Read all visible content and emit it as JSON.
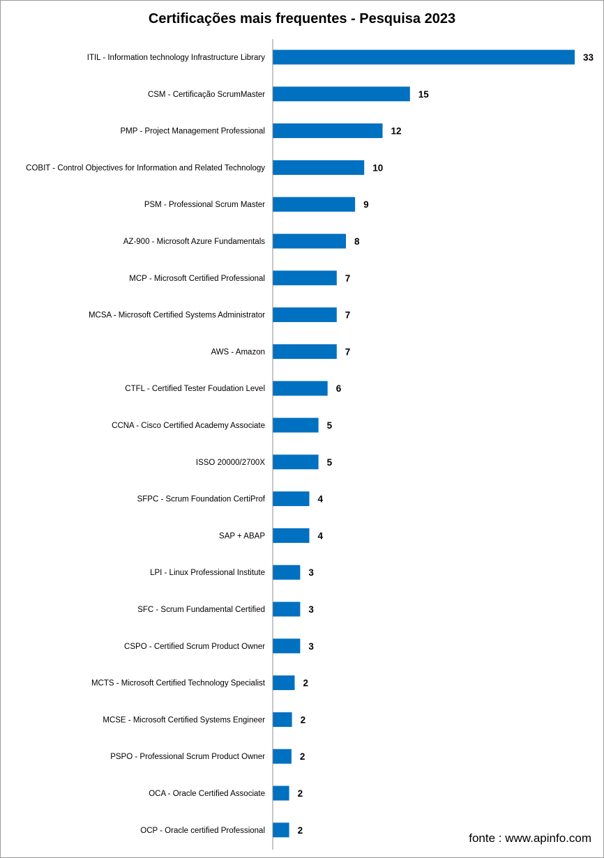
{
  "chart_data": {
    "type": "bar",
    "orientation": "horizontal",
    "title": "Certificações mais frequentes - Pesquisa 2023",
    "source": "fonte : www.apinfo.com",
    "bar_color": "#0070C0",
    "categories": [
      "ITIL - Information technology Infrastructure Library",
      "CSM - Certificação ScrumMaster",
      "PMP - Project Management Professional",
      "COBIT - Control Objectives for Information and Related Technology",
      "PSM - Professional Scrum Master",
      "AZ-900 - Microsoft Azure Fundamentals",
      "MCP - Microsoft Certified Professional",
      "MCSA - Microsoft Certified Systems Administrator",
      "AWS - Amazon",
      "CTFL - Certified Tester Foudation Level",
      "CCNA - Cisco Certified Academy Associate",
      "ISSO 20000/2700X",
      "SFPC - Scrum Foundation CertiProf",
      "SAP + ABAP",
      "LPI - Linux Professional Institute",
      "SFC - Scrum Fundamental Certified",
      "CSPO - Certified Scrum Product Owner",
      "MCTS - Microsoft Certified Technology Specialist",
      "MCSE - Microsoft Certified Systems Engineer",
      "PSPO - Professional Scrum Product Owner",
      "OCA - Oracle Certified Associate",
      "OCP - Oracle certified Professional"
    ],
    "values": [
      33,
      15,
      12,
      10,
      9,
      8,
      7,
      7,
      7,
      6,
      5,
      5,
      4,
      4,
      3,
      3,
      3,
      2.4,
      2.1,
      2.05,
      1.8,
      1.8
    ],
    "value_labels": [
      "33",
      "15",
      "12",
      "10",
      "9",
      "8",
      "7",
      "7",
      "7",
      "6",
      "5",
      "5",
      "4",
      "4",
      "3",
      "3",
      "3",
      "2",
      "2",
      "2",
      "2",
      "2"
    ],
    "xlim": [
      0,
      33
    ]
  }
}
